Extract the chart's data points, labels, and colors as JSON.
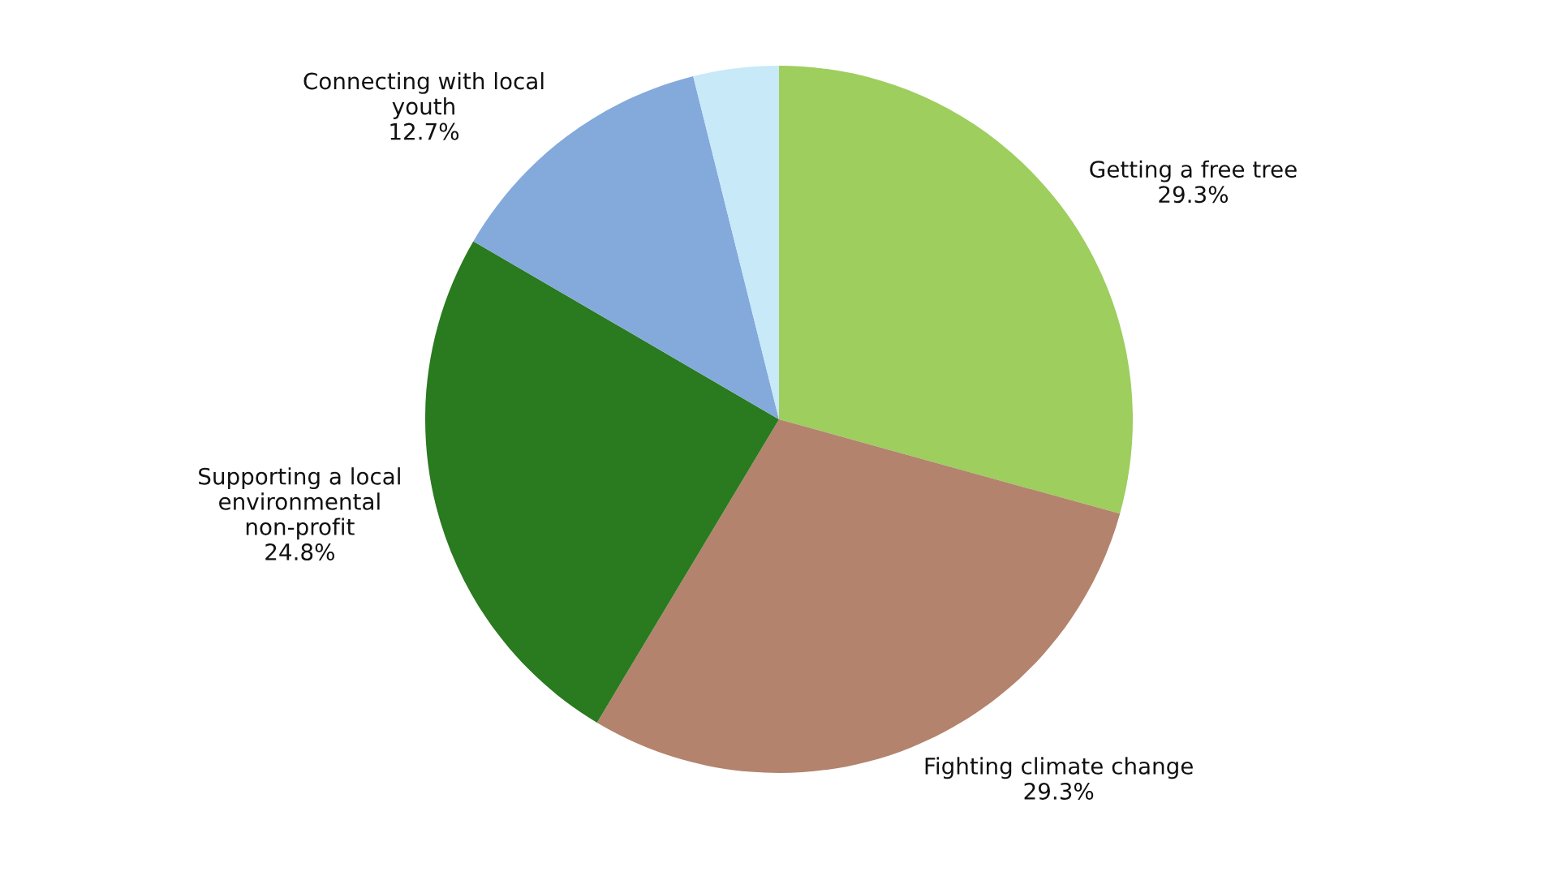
{
  "chart_data": {
    "type": "pie",
    "categories": [
      "Getting a free tree",
      "Fighting climate change",
      "Supporting a local environmental non-profit",
      "Connecting with local youth",
      null
    ],
    "values": [
      29.3,
      29.3,
      24.8,
      12.7,
      3.9
    ],
    "value_labels": [
      "29.3%",
      "29.3%",
      "24.8%",
      "12.7%",
      null
    ],
    "colors": [
      "#9dce5e",
      "#b3836d",
      "#2a7a1f",
      "#84a9db",
      "#c7e9f8"
    ],
    "legend": false
  }
}
